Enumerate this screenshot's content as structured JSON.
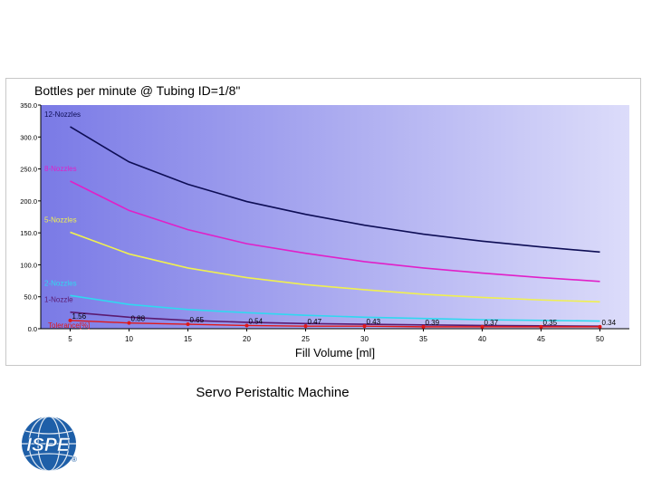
{
  "caption": "Servo Peristaltic Machine",
  "logo": {
    "text": "ISPE",
    "registered": "®",
    "color": "#1e5fa8"
  },
  "chart_data": {
    "type": "line",
    "title": "Bottles per minute @ Tubing ID=1/8\"",
    "xlabel": "Fill Volume [ml]",
    "ylabel": "",
    "x": [
      5,
      10,
      15,
      20,
      25,
      30,
      35,
      40,
      45,
      50
    ],
    "xlim": [
      2.5,
      52.5
    ],
    "ylim": [
      0,
      350
    ],
    "y_ticks": [
      "0.0",
      "50.0",
      "100.0",
      "150.0",
      "200.0",
      "250.0",
      "300.0",
      "350.0"
    ],
    "x_ticks": [
      "5",
      "10",
      "15",
      "20",
      "25",
      "30",
      "35",
      "40",
      "45",
      "50"
    ],
    "grid": false,
    "background_gradient": [
      "#7a7ae6",
      "#dcdcfa"
    ],
    "series": [
      {
        "name": "12-Nozzles",
        "color": "#0d0d55",
        "values": [
          316,
          261,
          226,
          199,
          179,
          162,
          148,
          137,
          128,
          120
        ]
      },
      {
        "name": "8-Nozzles",
        "color": "#e020c8",
        "values": [
          231,
          185,
          155,
          133,
          118,
          105,
          95,
          87,
          80,
          74
        ]
      },
      {
        "name": "5-Nozzles",
        "color": "#f0f050",
        "values": [
          151,
          117,
          95,
          80,
          69,
          61,
          54,
          49,
          45,
          42
        ]
      },
      {
        "name": "2-Nozzles",
        "color": "#30d8f0",
        "values": [
          52,
          38,
          30,
          25,
          21,
          18,
          16,
          14,
          13,
          12
        ]
      },
      {
        "name": "1-Nozzle",
        "color": "#5a1a70",
        "values": [
          26,
          18,
          13,
          10,
          8,
          7,
          6,
          5,
          4.5,
          4
        ]
      }
    ],
    "tolerance": {
      "name": "Tolerance[%]",
      "color": "#e01818",
      "values": [
        1.56,
        0.88,
        0.65,
        0.54,
        0.47,
        0.43,
        0.39,
        0.37,
        0.35,
        0.34
      ],
      "labels": [
        "1.56",
        "0.88",
        "0.65",
        "0.54",
        "0.47",
        "0.43",
        "0.39",
        "0.37",
        "0.35",
        "0.34"
      ],
      "plot_y": [
        13,
        9,
        7,
        5,
        4,
        4,
        3,
        3,
        3,
        3
      ]
    }
  }
}
